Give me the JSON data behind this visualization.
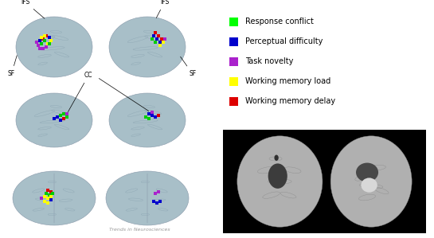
{
  "background_color": "#ffffff",
  "legend_items": [
    {
      "label": "Response conflict",
      "color": "#00ff00"
    },
    {
      "label": "Perceptual difficulty",
      "color": "#0000cc"
    },
    {
      "label": "Task novelty",
      "color": "#aa22cc"
    },
    {
      "label": "Working memory load",
      "color": "#ffff00"
    },
    {
      "label": "Working memory delay",
      "color": "#dd0000"
    }
  ],
  "journal_text": "Trends in Neurosciences",
  "brain_color": "#a8bfc8",
  "brain_edge_color": "#8899aa",
  "sulci_color": "#8fa8b5"
}
